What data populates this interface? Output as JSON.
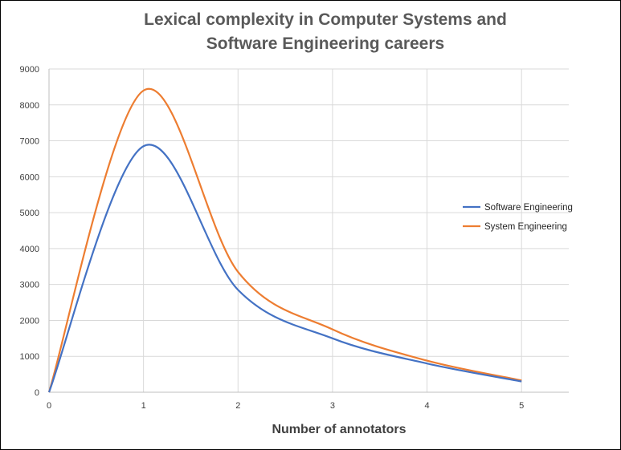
{
  "chart_data": {
    "type": "line",
    "title_lines": [
      "Lexical complexity in Computer Systems and",
      "Software Engineering careers"
    ],
    "xlabel": "Number of annotators",
    "ylabel": "",
    "xlim": [
      0,
      5.5
    ],
    "ylim": [
      0,
      9000
    ],
    "x_ticks": [
      0,
      1,
      2,
      3,
      4,
      5
    ],
    "y_ticks": [
      0,
      1000,
      2000,
      3000,
      4000,
      5000,
      6000,
      7000,
      8000,
      9000
    ],
    "grid": "vertical-and-horizontal",
    "legend_position": "right",
    "smooth": true,
    "series": [
      {
        "name": "Software Engineering",
        "color": "#4472C4",
        "x": [
          0,
          1,
          2,
          3,
          4,
          5
        ],
        "values": [
          0,
          6850,
          2850,
          1500,
          800,
          300
        ]
      },
      {
        "name": "System Engineering",
        "color": "#ED7D31",
        "x": [
          0,
          1,
          2,
          3,
          4,
          5
        ],
        "values": [
          0,
          8400,
          3350,
          1750,
          880,
          330
        ]
      }
    ]
  }
}
